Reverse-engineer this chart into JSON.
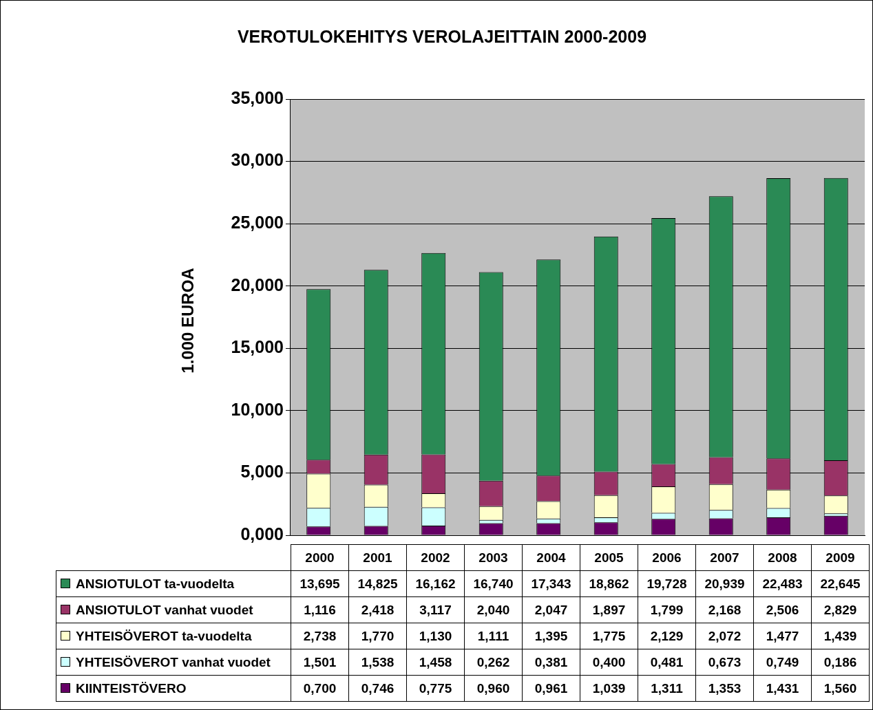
{
  "chart_data": {
    "type": "bar",
    "title": "VEROTULOKEHITYS VEROLAJEITTAIN 2000-2009",
    "ylabel": "1.000 EUROA",
    "categories": [
      "2000",
      "2001",
      "2002",
      "2003",
      "2004",
      "2005",
      "2006",
      "2007",
      "2008",
      "2009"
    ],
    "stacked": true,
    "legend": "bottom",
    "grid": "y",
    "ylim": [
      0,
      35
    ],
    "yticks": [
      {
        "value": 0,
        "label": "0,000"
      },
      {
        "value": 5,
        "label": "5,000"
      },
      {
        "value": 10,
        "label": "10,000"
      },
      {
        "value": 15,
        "label": "15,000"
      },
      {
        "value": 20,
        "label": "20,000"
      },
      {
        "value": 25,
        "label": "25,000"
      },
      {
        "value": 30,
        "label": "30,000"
      },
      {
        "value": 35,
        "label": "35,000"
      }
    ],
    "series": [
      {
        "name": "KIINTEISTÖVERO",
        "color": "#660066",
        "values": [
          0.7,
          0.746,
          0.775,
          0.96,
          0.961,
          1.039,
          1.311,
          1.353,
          1.431,
          1.56
        ],
        "value_labels": [
          "0,700",
          "0,746",
          "0,775",
          "0,960",
          "0,961",
          "1,039",
          "1,311",
          "1,353",
          "1,431",
          "1,560"
        ]
      },
      {
        "name": "YHTEISÖVEROT vanhat vuodet",
        "color": "#ccffff",
        "values": [
          1.501,
          1.538,
          1.458,
          0.262,
          0.381,
          0.4,
          0.481,
          0.673,
          0.749,
          0.186
        ],
        "value_labels": [
          "1,501",
          "1,538",
          "1,458",
          "0,262",
          "0,381",
          "0,400",
          "0,481",
          "0,673",
          "0,749",
          "0,186"
        ]
      },
      {
        "name": "YHTEISÖVEROT ta-vuodelta",
        "color": "#ffffcc",
        "values": [
          2.738,
          1.77,
          1.13,
          1.111,
          1.395,
          1.775,
          2.129,
          2.072,
          1.477,
          1.439
        ],
        "value_labels": [
          "2,738",
          "1,770",
          "1,130",
          "1,111",
          "1,395",
          "1,775",
          "2,129",
          "2,072",
          "1,477",
          "1,439"
        ]
      },
      {
        "name": "ANSIOTULOT vanhat vuodet",
        "color": "#993366",
        "values": [
          1.116,
          2.418,
          3.117,
          2.04,
          2.047,
          1.897,
          1.799,
          2.168,
          2.506,
          2.829
        ],
        "value_labels": [
          "1,116",
          "2,418",
          "3,117",
          "2,040",
          "2,047",
          "1,897",
          "1,799",
          "2,168",
          "2,506",
          "2,829"
        ]
      },
      {
        "name": "ANSIOTULOT ta-vuodelta",
        "color": "#2a8a55",
        "values": [
          13.695,
          14.825,
          16.162,
          16.74,
          17.343,
          18.862,
          19.728,
          20.939,
          22.483,
          22.645
        ],
        "value_labels": [
          "13,695",
          "14,825",
          "16,162",
          "16,740",
          "17,343",
          "18,862",
          "19,728",
          "20,939",
          "22,483",
          "22,645"
        ]
      }
    ]
  }
}
